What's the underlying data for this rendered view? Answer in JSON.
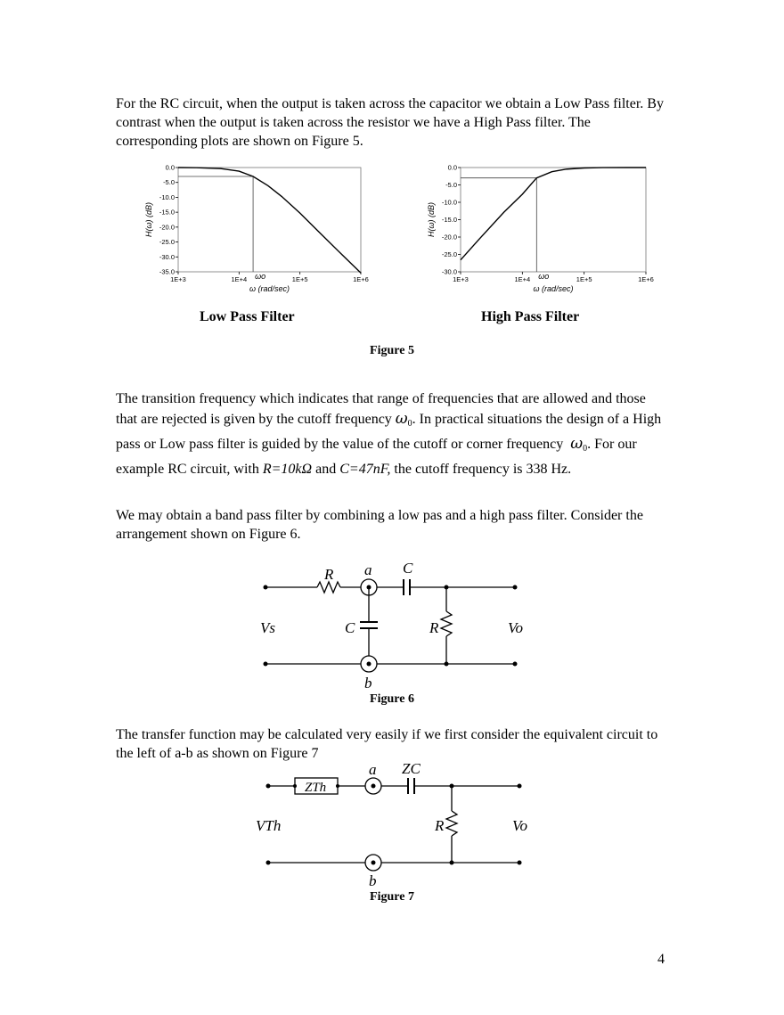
{
  "paragraphs": {
    "p1": "For the RC circuit, when the output is taken across the capacitor we obtain a Low Pass filter. By contrast when the output is taken across the resistor we have a High Pass filter. The corresponding plots are shown on Figure 5.",
    "p2": {
      "a": "The transition frequency which indicates that range of frequencies that are allowed and those that are rejected is given by the cutoff frequency",
      "b": ". In practical situations the design of a High pass or Low pass filter is guided by the value of the cutoff or corner frequency",
      "c": ". For our example RC circuit, with",
      "r_val": "R=10kΩ",
      "and": "and",
      "c_val": "C=47nF,",
      "d": "the cutoff frequency is 338 Hz."
    },
    "p3": "We may obtain a band pass filter by combining a low pas and a high pass filter. Consider the arrangement shown on  Figure 6.",
    "p4": "The transfer function may be calculated very easily if we first consider the equivalent circuit to the left of a-b as shown on Figure 7"
  },
  "symbols": {
    "omega": "ω",
    "zero": "0"
  },
  "figures": {
    "fig5_caption": "Figure 5",
    "fig6_caption": "Figure 6",
    "fig7_caption": "Figure 7",
    "low_pass_caption": "Low Pass Filter",
    "high_pass_caption": "High Pass Filter"
  },
  "chart_data": [
    {
      "type": "line",
      "title": "",
      "xlabel": "ω (rad/sec)",
      "ylabel": "H(ω) (dB)",
      "x_scale": "log",
      "x_ticks": [
        "1E+3",
        "1E+4",
        "1E+5",
        "1E+6"
      ],
      "y_ticks": [
        "0.0",
        "-5.0",
        "-10.0",
        "-15.0",
        "-20.0",
        "-25.0",
        "-30.0",
        "-35.0"
      ],
      "xlim": [
        1000,
        1000000
      ],
      "ylim": [
        -35,
        0
      ],
      "marker_label": "ωo",
      "marker_x": 17000,
      "marker_y": -3,
      "series": [
        {
          "x": [
            1000,
            2000,
            5000,
            10000,
            17000,
            30000,
            50000,
            100000,
            200000,
            500000,
            1000000
          ],
          "y": [
            -0.01,
            -0.06,
            -0.35,
            -1.24,
            -3.0,
            -6.1,
            -9.7,
            -15.3,
            -21.4,
            -29.4,
            -35.4
          ]
        }
      ],
      "grid": false
    },
    {
      "type": "line",
      "title": "",
      "xlabel": "ω (rad/sec)",
      "ylabel": "H(ω) (dB)",
      "x_scale": "log",
      "x_ticks": [
        "1E+3",
        "1E+4",
        "1E+5",
        "1E+6"
      ],
      "y_ticks": [
        "0.0",
        "-5.0",
        "-10.0",
        "-15.0",
        "-20.0",
        "-25.0",
        "-30.0"
      ],
      "xlim": [
        1000,
        1000000
      ],
      "ylim": [
        -30,
        0
      ],
      "marker_label": "ωo",
      "marker_x": 17000,
      "marker_y": -3,
      "series": [
        {
          "x": [
            1000,
            2000,
            5000,
            10000,
            17000,
            30000,
            50000,
            100000,
            200000,
            500000,
            1000000
          ],
          "y": [
            -26.6,
            -20.6,
            -12.9,
            -7.7,
            -3.0,
            -1.2,
            -0.5,
            -0.12,
            -0.03,
            -0.005,
            0
          ]
        }
      ],
      "grid": false
    }
  ],
  "circuit6": {
    "r_top": "R",
    "node_a": "a",
    "cap_top": "C",
    "vs": "Vs",
    "cap_mid": "C",
    "r_right": "R",
    "vo": "Vo",
    "node_b": "b"
  },
  "circuit7": {
    "zth": "ZTh",
    "node_a": "a",
    "zc": "ZC",
    "vth": "VTh",
    "r_right": "R",
    "vo": "Vo",
    "node_b": "b"
  },
  "page_number": "4"
}
